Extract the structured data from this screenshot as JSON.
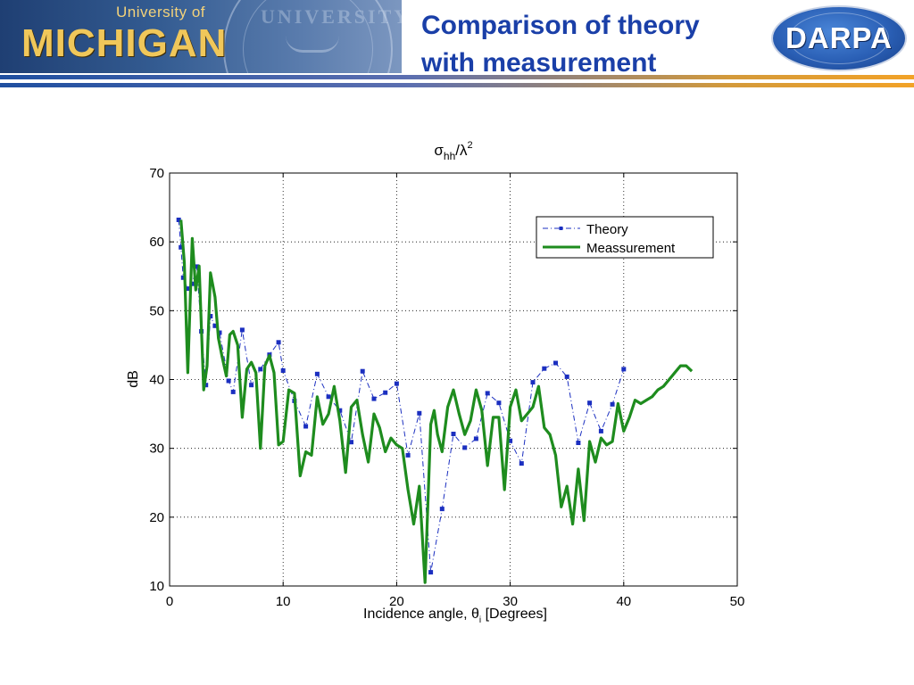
{
  "header": {
    "university_small": "University of",
    "university_big": "MICHIGAN",
    "title_line1": "Comparison of theory",
    "title_line2": "with measurement",
    "darpa_logo": "DARPA",
    "seal_text": "UNIVERSITY"
  },
  "colors": {
    "title": "#1a3fa8",
    "theory": "#1b2fc0",
    "measurement": "#1e8c1e"
  },
  "chart_data": {
    "type": "line",
    "title": "σhh/λ²",
    "title_main": "σ",
    "title_sub": "hh",
    "title_slash": "/λ",
    "title_sup": "2",
    "xlabel": "Incidence angle, θi [Degrees]",
    "xlabel_main": "Incidence angle, θ",
    "xlabel_sub": "i",
    "xlabel_end": " [Degrees]",
    "ylabel": "dB",
    "xlim": [
      0,
      50
    ],
    "ylim": [
      10,
      70
    ],
    "xticks": [
      0,
      10,
      20,
      30,
      40,
      50
    ],
    "yticks": [
      10,
      20,
      30,
      40,
      50,
      60,
      70
    ],
    "grid": true,
    "legend_position": "top-right",
    "series": [
      {
        "name": "Theory",
        "style": "dash-dot with square markers",
        "x": [
          0.8,
          1.0,
          1.2,
          1.6,
          2.0,
          2.4,
          2.8,
          3.2,
          3.6,
          4.0,
          4.4,
          5.2,
          5.6,
          6.4,
          7.2,
          8.0,
          8.8,
          9.6,
          10.0,
          11.0,
          12.0,
          13.0,
          14.0,
          15.0,
          16.0,
          17.0,
          18.0,
          19.0,
          20.0,
          21.0,
          22.0,
          23.0,
          24.0,
          25.0,
          26.0,
          27.0,
          28.0,
          29.0,
          30.0,
          31.0,
          32.0,
          33.0,
          34.0,
          35.0,
          36.0,
          37.0,
          38.0,
          39.0,
          40.0
        ],
        "y": [
          63.2,
          59.2,
          54.8,
          53.2,
          53.9,
          56.4,
          47.0,
          39.2,
          49.2,
          47.8,
          46.8,
          39.8,
          38.2,
          47.2,
          39.2,
          41.5,
          43.6,
          45.4,
          41.3,
          36.9,
          33.2,
          40.8,
          37.5,
          35.5,
          30.9,
          41.2,
          37.2,
          38.1,
          39.4,
          29.0,
          35.1,
          12.0,
          21.2,
          32.1,
          30.1,
          31.4,
          38.0,
          36.6,
          31.1,
          27.8,
          39.6,
          41.6,
          42.4,
          40.4,
          30.8,
          36.6,
          32.5,
          36.4,
          41.5
        ]
      },
      {
        "name": "Meassurement",
        "style": "solid thick",
        "x": [
          1.0,
          1.3,
          1.6,
          2.0,
          2.3,
          2.6,
          3.0,
          3.3,
          3.6,
          4.0,
          4.3,
          4.6,
          5.0,
          5.3,
          5.6,
          6.0,
          6.4,
          6.8,
          7.2,
          7.6,
          8.0,
          8.4,
          8.8,
          9.2,
          9.6,
          10.0,
          10.5,
          11.0,
          11.5,
          12.0,
          12.5,
          13.0,
          13.5,
          14.0,
          14.5,
          15.0,
          15.5,
          16.0,
          16.5,
          17.0,
          17.5,
          18.0,
          18.5,
          19.0,
          19.5,
          20.0,
          20.5,
          21.0,
          21.5,
          22.0,
          22.5,
          23.0,
          23.3,
          23.6,
          24.0,
          24.5,
          25.0,
          25.5,
          26.0,
          26.5,
          27.0,
          27.5,
          28.0,
          28.5,
          29.0,
          29.5,
          30.0,
          30.5,
          31.0,
          31.5,
          32.0,
          32.5,
          33.0,
          33.5,
          34.0,
          34.5,
          35.0,
          35.5,
          36.0,
          36.5,
          37.0,
          37.5,
          38.0,
          38.5,
          39.0,
          39.5,
          40.0,
          40.5,
          41.0,
          41.5,
          42.0,
          42.5,
          43.0,
          43.5,
          44.0,
          44.5,
          45.0,
          45.5,
          46.0
        ],
        "y": [
          63.2,
          57.0,
          41.0,
          60.5,
          53.0,
          56.5,
          38.5,
          42.0,
          55.5,
          52.0,
          46.0,
          43.5,
          40.5,
          46.5,
          47.0,
          45.0,
          34.5,
          41.5,
          42.5,
          41.0,
          30.0,
          42.0,
          43.5,
          41.0,
          30.5,
          31.0,
          38.5,
          38.0,
          26.0,
          29.5,
          29.0,
          37.5,
          33.5,
          35.0,
          39.0,
          34.0,
          26.5,
          36.0,
          37.0,
          32.0,
          28.0,
          35.0,
          33.0,
          29.5,
          31.5,
          30.5,
          30.0,
          24.0,
          19.0,
          24.5,
          10.5,
          33.5,
          35.5,
          32.0,
          29.5,
          36.0,
          38.5,
          35.0,
          32.0,
          34.0,
          38.5,
          35.5,
          27.5,
          34.5,
          34.5,
          24.0,
          36.0,
          38.5,
          34.0,
          35.0,
          36.0,
          39.0,
          33.0,
          32.0,
          29.0,
          21.5,
          24.5,
          19.0,
          27.0,
          19.5,
          31.0,
          28.0,
          31.5,
          30.5,
          31.0,
          36.5,
          32.5,
          34.5,
          37.0,
          36.5,
          37.0,
          37.5,
          38.5,
          39.0,
          40.0,
          41.0,
          42.0,
          42.0,
          41.2
        ]
      }
    ]
  }
}
